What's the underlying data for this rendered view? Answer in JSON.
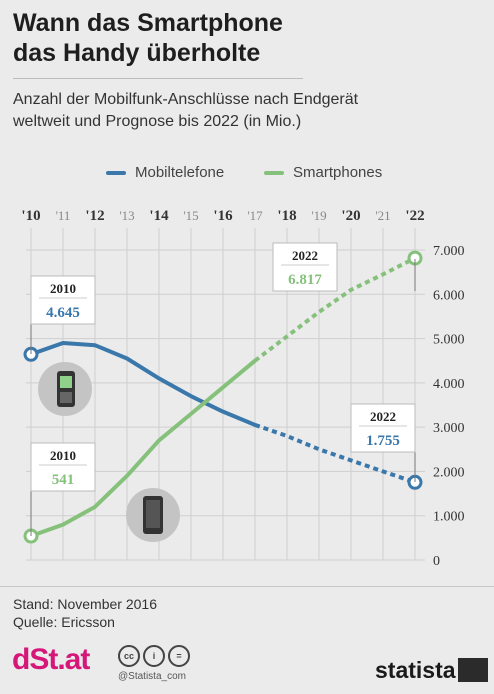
{
  "header": {
    "title_line1": "Wann das Smartphone",
    "title_line2": "das Handy überholte",
    "subtitle_line1": "Anzahl der Mobilfunk-Anschlüsse nach Endgerät",
    "subtitle_line2": "weltweit und Prognose bis 2022 (in Mio.)"
  },
  "colors": {
    "mobiltelefone": "#3a77aa",
    "smartphones": "#86c17c"
  },
  "chart_data": {
    "type": "line",
    "x": [
      "'10",
      "'11",
      "'12",
      "'13",
      "'14",
      "'15",
      "'16",
      "'17",
      "'18",
      "'19",
      "'20",
      "'21",
      "'22"
    ],
    "ylim": [
      0,
      7000
    ],
    "yticks": [
      "0",
      "1.000",
      "2.000",
      "3.000",
      "4.000",
      "5.000",
      "6.000",
      "7.000"
    ],
    "forecast_from_index": 7,
    "series": [
      {
        "name": "Mobiltelefone",
        "values": [
          4645,
          4900,
          4850,
          4550,
          4100,
          3700,
          3350,
          3050,
          2800,
          2500,
          2250,
          2000,
          1755
        ]
      },
      {
        "name": "Smartphones",
        "values": [
          541,
          800,
          1200,
          1900,
          2700,
          3300,
          3900,
          4500,
          5050,
          5600,
          6100,
          6450,
          6817
        ]
      }
    ],
    "annotations": [
      {
        "year": "2010",
        "value": "4.645",
        "series": "Mobiltelefone"
      },
      {
        "year": "2010",
        "value": "541",
        "series": "Smartphones"
      },
      {
        "year": "2022",
        "value": "6.817",
        "series": "Smartphones"
      },
      {
        "year": "2022",
        "value": "1.755",
        "series": "Mobiltelefone"
      }
    ]
  },
  "footer": {
    "stand": "Stand: November 2016",
    "quelle": "Quelle: Ericsson",
    "brand": "dSt.at",
    "handle": "@Statista_com",
    "statista": "statista"
  }
}
